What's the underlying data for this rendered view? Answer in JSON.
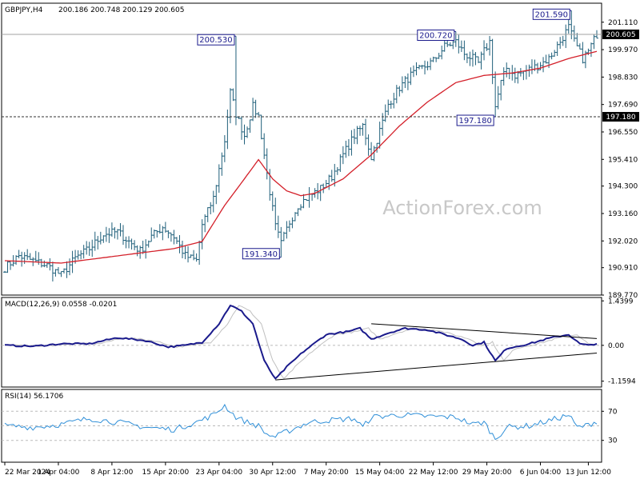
{
  "header": {
    "symbol": "GBPJPY,H4",
    "ohlc": "200.186 200.748 200.129 200.605"
  },
  "watermark": "ActionForex.com",
  "colors": {
    "price_bar": "#1f5f7a",
    "sma": "#d4202a",
    "macd_line": "#1a1a8c",
    "macd_signal": "#c0c0c0",
    "rsi_line": "#2f8fd8",
    "price_tag_bg": "#000000",
    "callout_border": "#1a1a8c",
    "watermark": "#c8c8c8"
  },
  "chart_data": [
    {
      "type": "line",
      "name": "price",
      "price_tag": "200.605",
      "support_tag": "197.180",
      "y_ticks": [
        "201.110",
        "199.970",
        "198.830",
        "197.690",
        "196.550",
        "195.410",
        "194.300",
        "193.160",
        "192.020",
        "190.910",
        "189.770"
      ],
      "y_tick_values": [
        201.11,
        199.97,
        198.83,
        197.69,
        196.55,
        195.41,
        194.3,
        193.16,
        192.02,
        190.91,
        189.77
      ],
      "ylim": [
        189.77,
        201.9
      ],
      "x_ticks": [
        "22 Mar 2024",
        "1 Apr 04:00",
        "8 Apr 12:00",
        "15 Apr 20:00",
        "23 Apr 04:00",
        "30 Apr 12:00",
        "7 May 20:00",
        "15 May 04:00",
        "22 May 12:00",
        "29 May 20:00",
        "6 Jun 04:00",
        "13 Jun 12:00"
      ],
      "annotations": [
        {
          "label": "200.530",
          "value": 200.53,
          "bar": 82
        },
        {
          "label": "191.340",
          "value": 191.34,
          "bar": 98
        },
        {
          "label": "200.720",
          "value": 200.72,
          "bar": 160
        },
        {
          "label": "197.180",
          "value": 197.18,
          "bar": 174
        },
        {
          "label": "201.590",
          "value": 201.59,
          "bar": 201
        }
      ],
      "keypoints": [
        [
          0,
          190.9
        ],
        [
          5,
          191.4
        ],
        [
          10,
          191.2
        ],
        [
          15,
          191.0
        ],
        [
          20,
          190.6
        ],
        [
          25,
          191.3
        ],
        [
          30,
          191.7
        ],
        [
          35,
          192.3
        ],
        [
          40,
          192.4
        ],
        [
          45,
          191.9
        ],
        [
          48,
          191.6
        ],
        [
          52,
          192.2
        ],
        [
          56,
          192.6
        ],
        [
          60,
          192.2
        ],
        [
          64,
          191.4
        ],
        [
          68,
          191.2
        ],
        [
          70,
          192.7
        ],
        [
          74,
          193.8
        ],
        [
          78,
          196.2
        ],
        [
          80,
          198.2
        ],
        [
          82,
          197.3
        ],
        [
          85,
          196.4
        ],
        [
          88,
          197.6
        ],
        [
          90,
          197.2
        ],
        [
          93,
          194.8
        ],
        [
          96,
          192.6
        ],
        [
          98,
          191.9
        ],
        [
          101,
          192.8
        ],
        [
          104,
          193.5
        ],
        [
          107,
          193.8
        ],
        [
          112,
          194.2
        ],
        [
          116,
          194.7
        ],
        [
          120,
          195.6
        ],
        [
          124,
          196.4
        ],
        [
          127,
          196.8
        ],
        [
          130,
          195.5
        ],
        [
          133,
          196.6
        ],
        [
          136,
          197.7
        ],
        [
          140,
          198.4
        ],
        [
          144,
          198.9
        ],
        [
          148,
          199.2
        ],
        [
          152,
          199.5
        ],
        [
          156,
          200.1
        ],
        [
          160,
          200.3
        ],
        [
          163,
          199.8
        ],
        [
          166,
          199.6
        ],
        [
          168,
          199.4
        ],
        [
          170,
          199.9
        ],
        [
          172,
          200.3
        ],
        [
          174,
          197.6
        ],
        [
          176,
          198.6
        ],
        [
          178,
          199.2
        ],
        [
          181,
          198.9
        ],
        [
          185,
          199.1
        ],
        [
          189,
          199.3
        ],
        [
          193,
          199.6
        ],
        [
          197,
          200.3
        ],
        [
          200,
          200.9
        ],
        [
          202,
          200.3
        ],
        [
          205,
          199.6
        ],
        [
          207,
          199.9
        ],
        [
          210,
          200.61
        ]
      ],
      "sma_keypoints": [
        [
          0,
          191.2
        ],
        [
          20,
          191.1
        ],
        [
          40,
          191.4
        ],
        [
          60,
          191.7
        ],
        [
          70,
          192.0
        ],
        [
          78,
          193.5
        ],
        [
          85,
          194.6
        ],
        [
          90,
          195.4
        ],
        [
          95,
          194.6
        ],
        [
          100,
          194.1
        ],
        [
          105,
          193.9
        ],
        [
          110,
          194.0
        ],
        [
          120,
          194.6
        ],
        [
          130,
          195.6
        ],
        [
          140,
          196.8
        ],
        [
          150,
          197.8
        ],
        [
          160,
          198.6
        ],
        [
          170,
          198.9
        ],
        [
          180,
          199.0
        ],
        [
          190,
          199.2
        ],
        [
          200,
          199.6
        ],
        [
          210,
          199.9
        ]
      ]
    },
    {
      "type": "line",
      "name": "MACD(12,26,9)",
      "label": "MACD(12,26,9) 0.0558 -0.0201",
      "y_ticks": [
        "1.4399",
        "0.00",
        "-1.1594"
      ],
      "y_tick_values": [
        1.4399,
        0.0,
        -1.1594
      ],
      "ylim": [
        -1.35,
        1.55
      ],
      "macd_keypoints": [
        [
          0,
          0.0
        ],
        [
          10,
          -0.03
        ],
        [
          20,
          0.05
        ],
        [
          30,
          0.05
        ],
        [
          40,
          0.25
        ],
        [
          50,
          0.15
        ],
        [
          58,
          -0.05
        ],
        [
          64,
          0.0
        ],
        [
          70,
          0.1
        ],
        [
          76,
          0.7
        ],
        [
          80,
          1.3
        ],
        [
          84,
          1.1
        ],
        [
          88,
          0.7
        ],
        [
          92,
          -0.5
        ],
        [
          96,
          -1.1
        ],
        [
          100,
          -0.7
        ],
        [
          106,
          -0.2
        ],
        [
          114,
          0.35
        ],
        [
          122,
          0.45
        ],
        [
          126,
          0.55
        ],
        [
          130,
          0.2
        ],
        [
          136,
          0.4
        ],
        [
          142,
          0.55
        ],
        [
          150,
          0.5
        ],
        [
          156,
          0.35
        ],
        [
          162,
          0.2
        ],
        [
          166,
          0.0
        ],
        [
          170,
          0.1
        ],
        [
          174,
          -0.5
        ],
        [
          178,
          -0.1
        ],
        [
          186,
          0.05
        ],
        [
          194,
          0.25
        ],
        [
          200,
          0.35
        ],
        [
          204,
          0.05
        ],
        [
          207,
          0.0
        ],
        [
          210,
          0.06
        ]
      ],
      "signal_lag_bars": 3,
      "trendlines": [
        {
          "from": [
            130,
            0.7
          ],
          "to": [
            210,
            0.22
          ]
        },
        {
          "from": [
            96,
            -1.12
          ],
          "to": [
            210,
            -0.25
          ]
        }
      ]
    },
    {
      "type": "line",
      "name": "RSI(14)",
      "label": "RSI(14) 56.1706",
      "y_ticks": [
        "70",
        "30"
      ],
      "y_tick_values": [
        70,
        30
      ],
      "ylim": [
        0,
        100
      ],
      "levels": [
        70,
        50,
        30
      ],
      "rsi_keypoints": [
        [
          0,
          50
        ],
        [
          10,
          48
        ],
        [
          20,
          52
        ],
        [
          30,
          60
        ],
        [
          40,
          55
        ],
        [
          50,
          48
        ],
        [
          60,
          45
        ],
        [
          68,
          55
        ],
        [
          74,
          65
        ],
        [
          78,
          78
        ],
        [
          82,
          62
        ],
        [
          86,
          55
        ],
        [
          90,
          50
        ],
        [
          93,
          38
        ],
        [
          96,
          35
        ],
        [
          100,
          42
        ],
        [
          108,
          55
        ],
        [
          116,
          58
        ],
        [
          124,
          60
        ],
        [
          127,
          48
        ],
        [
          130,
          62
        ],
        [
          140,
          65
        ],
        [
          150,
          63
        ],
        [
          160,
          62
        ],
        [
          166,
          52
        ],
        [
          170,
          55
        ],
        [
          174,
          32
        ],
        [
          178,
          48
        ],
        [
          186,
          50
        ],
        [
          194,
          58
        ],
        [
          200,
          65
        ],
        [
          203,
          48
        ],
        [
          206,
          50
        ],
        [
          210,
          56.17
        ]
      ]
    }
  ]
}
